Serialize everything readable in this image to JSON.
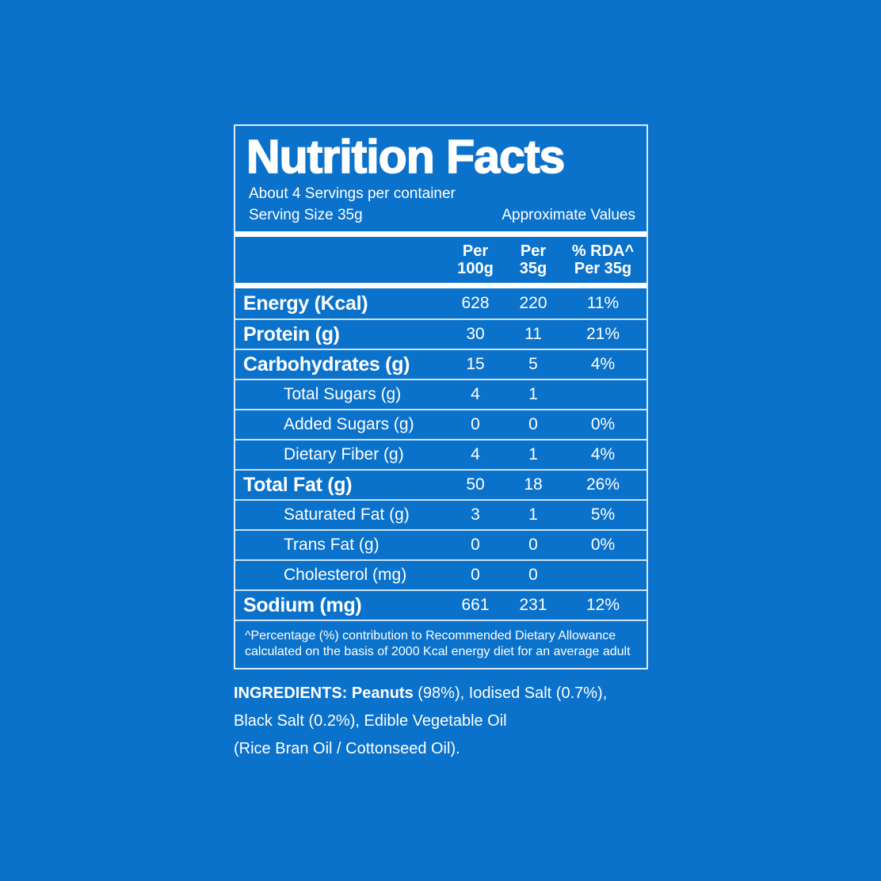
{
  "colors": {
    "background": "#0b72cb",
    "text": "#ffffff",
    "divider_thin": "rgba(240,247,253,0.85)",
    "divider_thick": "#ffffff"
  },
  "panel": {
    "title": "Nutrition Facts",
    "servings_per_container": "About 4 Servings per container",
    "serving_size": "Serving Size 35g",
    "approximate_values": "Approximate Values",
    "columns": [
      {
        "line1": "Per",
        "line2": "100g"
      },
      {
        "line1": "Per",
        "line2": "35g"
      },
      {
        "line1": "% RDA^",
        "line2": "Per 35g"
      }
    ],
    "rows": [
      {
        "name": "Energy (Kcal)",
        "per_100g": "628",
        "per_35g": "220",
        "rda_per_35g": "11%"
      },
      {
        "name": "Protein (g)",
        "per_100g": "30",
        "per_35g": "11",
        "rda_per_35g": "21%"
      },
      {
        "name": "Carbohydrates (g)",
        "per_100g": "15",
        "per_35g": "5",
        "rda_per_35g": "4%"
      },
      {
        "name": "Total Sugars (g)",
        "per_100g": "4",
        "per_35g": "1",
        "rda_per_35g": ""
      },
      {
        "name": "Added Sugars (g)",
        "per_100g": "0",
        "per_35g": "0",
        "rda_per_35g": "0%"
      },
      {
        "name": "Dietary Fiber (g)",
        "per_100g": "4",
        "per_35g": "1",
        "rda_per_35g": "4%"
      },
      {
        "name": "Total Fat (g)",
        "per_100g": "50",
        "per_35g": "18",
        "rda_per_35g": "26%"
      },
      {
        "name": "Saturated Fat (g)",
        "per_100g": "3",
        "per_35g": "1",
        "rda_per_35g": "5%"
      },
      {
        "name": "Trans Fat (g)",
        "per_100g": "0",
        "per_35g": "0",
        "rda_per_35g": "0%"
      },
      {
        "name": "Cholesterol (mg)",
        "per_100g": "0",
        "per_35g": "0",
        "rda_per_35g": ""
      },
      {
        "name": "Sodium (mg)",
        "per_100g": "661",
        "per_35g": "231",
        "rda_per_35g": "12%"
      }
    ],
    "footnote_line1": "^Percentage (%) contribution to Recommended Dietary Allowance",
    "footnote_line2": "calculated on the basis of 2000 Kcal energy diet for an average adult"
  },
  "ingredients": {
    "heading": "INGREDIENTS:",
    "first_item_bold": " Peanuts",
    "line1_rest": " (98%), Iodised Salt (0.7%),",
    "line2": "Black Salt (0.2%), Edible Vegetable Oil",
    "line3": "(Rice Bran Oil / Cottonseed Oil)."
  }
}
